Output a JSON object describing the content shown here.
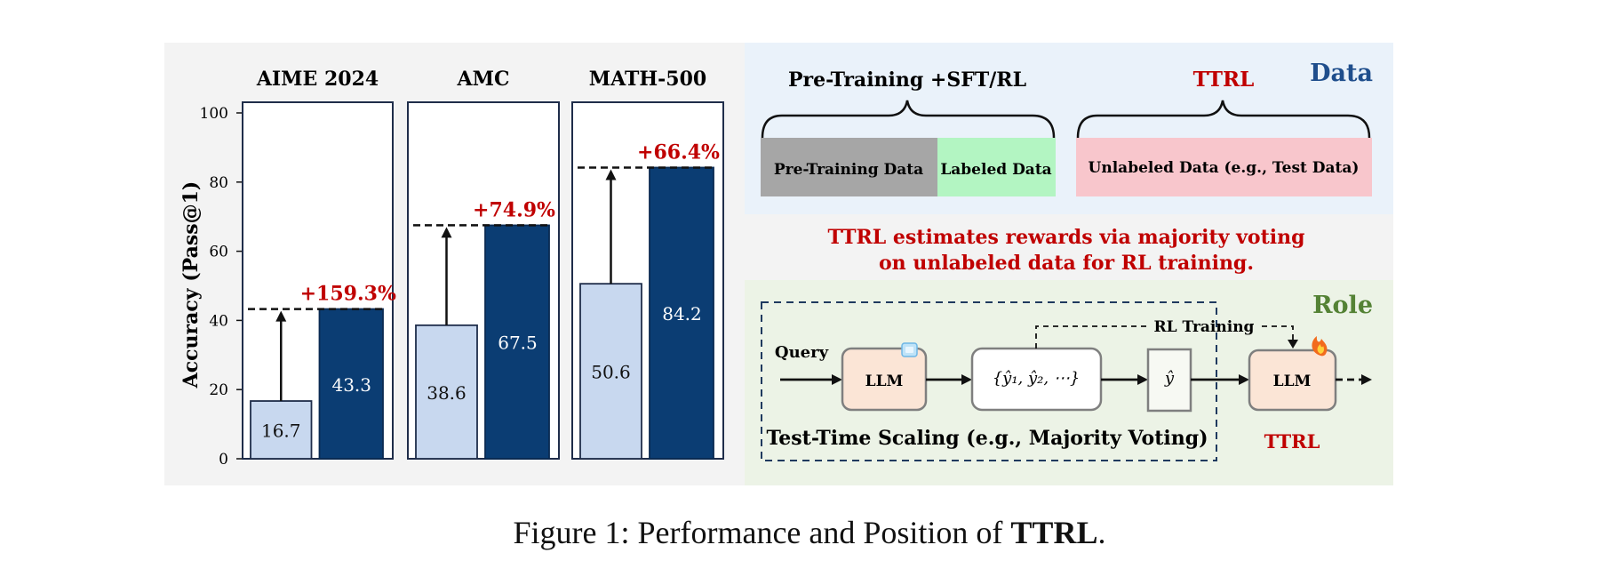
{
  "chart_data": [
    {
      "type": "bar",
      "title": "AIME 2024",
      "ylabel": "Accuracy (Pass@1)",
      "ylim": [
        0,
        100
      ],
      "yticks": [
        "0",
        "20",
        "40",
        "60",
        "80",
        "100"
      ],
      "values": [
        16.7,
        43.3
      ],
      "value_labels": [
        "16.7",
        "43.3"
      ],
      "gain_label": "+159.3%"
    },
    {
      "type": "bar",
      "title": "AMC",
      "ylim": [
        0,
        100
      ],
      "values": [
        38.6,
        67.5
      ],
      "value_labels": [
        "38.6",
        "67.5"
      ],
      "gain_label": "+74.9%"
    },
    {
      "type": "bar",
      "title": "MATH-500",
      "ylim": [
        0,
        100
      ],
      "values": [
        50.6,
        84.2
      ],
      "value_labels": [
        "50.6",
        "84.2"
      ],
      "gain_label": "+66.4%"
    }
  ],
  "colors": {
    "base_bar": "#c8d8ef",
    "ttrl_bar": "#0b3d73",
    "gain_text": "#c00000",
    "data_title": "#1f4e8c",
    "role_title": "#548235",
    "pretrain_box": "#a6a6a6",
    "labeled_box": "#b3f5c2",
    "unlabeled_box": "#f8c6cc",
    "llm_box": "#fbe5d6"
  },
  "data_section": {
    "title": "Data",
    "left_header": "Pre-Training +SFT/RL",
    "right_header": "TTRL",
    "pretrain_label": "Pre-Training Data",
    "labeled_label": "Labeled Data",
    "unlabeled_label": "Unlabeled Data (e.g., Test Data)"
  },
  "middle_text": {
    "line1": "TTRL estimates rewards via majority voting",
    "line2": "on unlabeled data for RL training."
  },
  "role_section": {
    "title": "Role",
    "query_label": "Query",
    "llm_label": "LLM",
    "candidates_label": "{ŷ₁, ŷ₂, ⋯}",
    "answer_label": "ŷ",
    "rl_training_label": "RL Training",
    "tts_label": "Test-Time Scaling (e.g., Majority Voting)",
    "ttrl_llm_label": "LLM",
    "ttrl_label": "TTRL"
  },
  "caption": {
    "prefix": "Figure 1: Performance and Position of ",
    "bold": "TTRL",
    "suffix": "."
  }
}
